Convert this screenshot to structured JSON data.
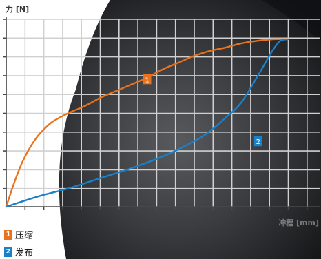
{
  "chart_data": {
    "type": "line",
    "xlabel": "冲程 [mm]",
    "ylabel": "力 [N]",
    "xlim": [
      0,
      18
    ],
    "ylim": [
      0,
      10
    ],
    "grid": true,
    "series": [
      {
        "name": "压缩",
        "marker": "1",
        "color": "#e8731c",
        "x": [
          0,
          0.5,
          1,
          1.5,
          2,
          2.5,
          3,
          4,
          5,
          6,
          7,
          8,
          9,
          10,
          11,
          12,
          13,
          14,
          15,
          16,
          17,
          18
        ],
        "y": [
          0,
          1.4,
          2.6,
          3.5,
          4.2,
          4.7,
          5.1,
          5.6,
          6.0,
          6.5,
          6.9,
          7.3,
          7.7,
          8.2,
          8.6,
          9.0,
          9.3,
          9.5,
          9.75,
          9.9,
          10.0,
          10.0
        ]
      },
      {
        "name": "发布",
        "marker": "2",
        "color": "#1a80c8",
        "x": [
          0,
          2,
          4,
          6,
          8,
          10,
          12,
          13,
          14,
          15,
          16,
          16.5,
          17,
          17.5,
          18
        ],
        "y": [
          0,
          0.6,
          1.1,
          1.7,
          2.3,
          3.0,
          3.9,
          4.5,
          5.3,
          6.2,
          7.7,
          8.5,
          9.3,
          9.9,
          10.0
        ]
      }
    ]
  }
}
